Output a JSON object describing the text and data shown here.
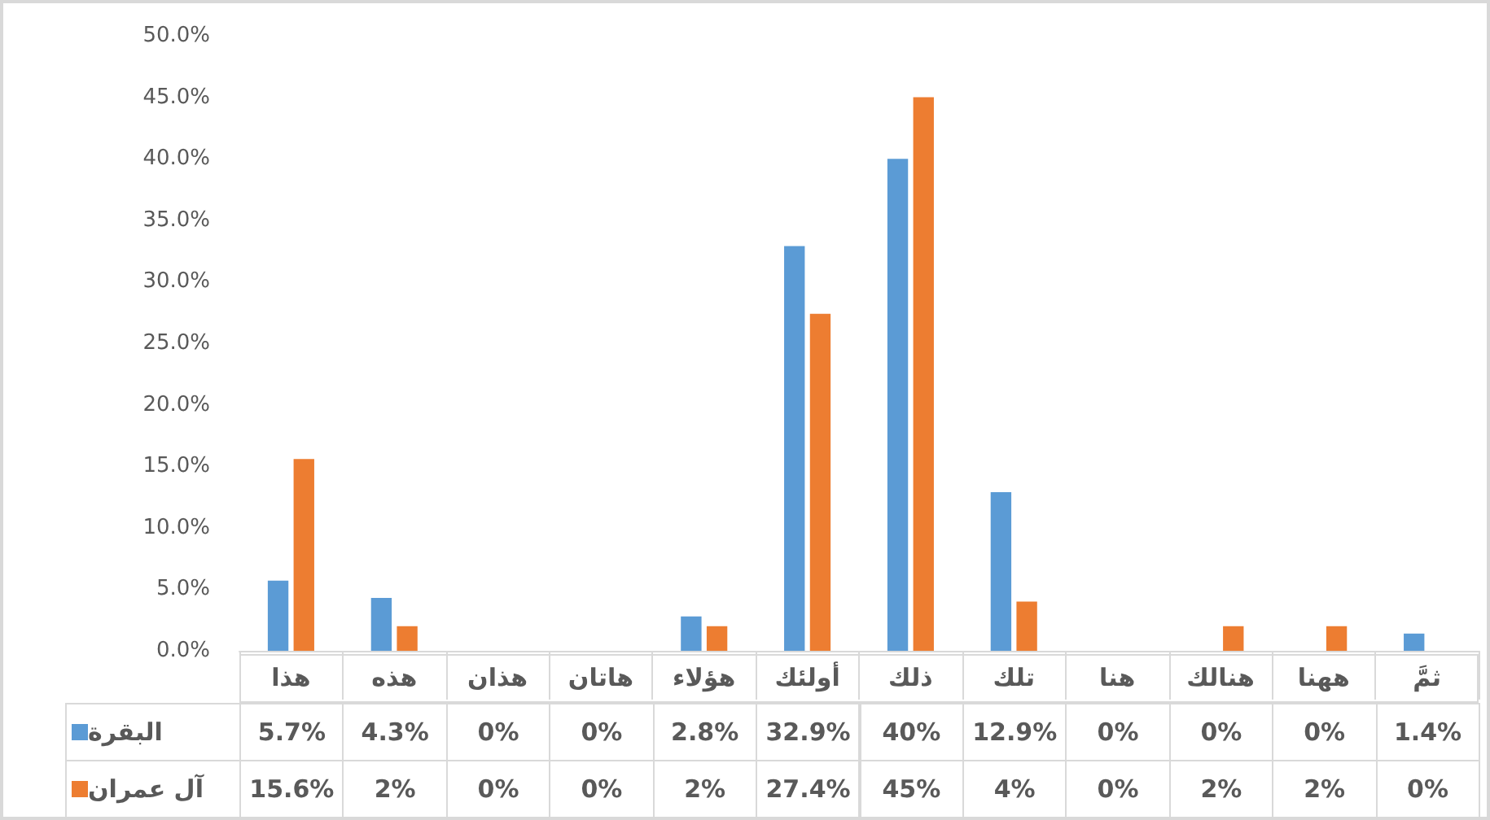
{
  "chart_data": {
    "type": "bar",
    "categories": [
      "هذا",
      "هذه",
      "هذان",
      "هاتان",
      "هؤلاء",
      "أولئك",
      "ذلك",
      "تلك",
      "هنا",
      "هنالك",
      "ههنا",
      "ثمَّ"
    ],
    "series": [
      {
        "name": "البقرة",
        "color": "#5b9bd5",
        "values": [
          5.7,
          4.3,
          0,
          0,
          2.8,
          32.9,
          40,
          12.9,
          0,
          0,
          0,
          1.4
        ],
        "value_labels": [
          "5.7%",
          "4.3%",
          "0%",
          "0%",
          "2.8%",
          "32.9%",
          "40%",
          "12.9%",
          "0%",
          "0%",
          "0%",
          "1.4%"
        ]
      },
      {
        "name": "آل عمران",
        "color": "#ed7d31",
        "values": [
          15.6,
          2,
          0,
          0,
          2,
          27.4,
          45,
          4,
          0,
          2,
          2,
          0
        ],
        "value_labels": [
          "15.6%",
          "2%",
          "0%",
          "0%",
          "2%",
          "27.4%",
          "45%",
          "4%",
          "0%",
          "2%",
          "2%",
          "0%"
        ]
      }
    ],
    "ylim": [
      0,
      50
    ],
    "yticks": [
      {
        "value": 0,
        "label": "0.0%"
      },
      {
        "value": 5,
        "label": "5.0%"
      },
      {
        "value": 10,
        "label": "10.0%"
      },
      {
        "value": 15,
        "label": "15.0%"
      },
      {
        "value": 20,
        "label": "20.0%"
      },
      {
        "value": 25,
        "label": "25.0%"
      },
      {
        "value": 30,
        "label": "30.0%"
      },
      {
        "value": 35,
        "label": "35.0%"
      },
      {
        "value": 40,
        "label": "40.0%"
      },
      {
        "value": 45,
        "label": "45.0%"
      },
      {
        "value": 50,
        "label": "50.0%"
      }
    ],
    "grid": false,
    "legend": "bottom left"
  }
}
